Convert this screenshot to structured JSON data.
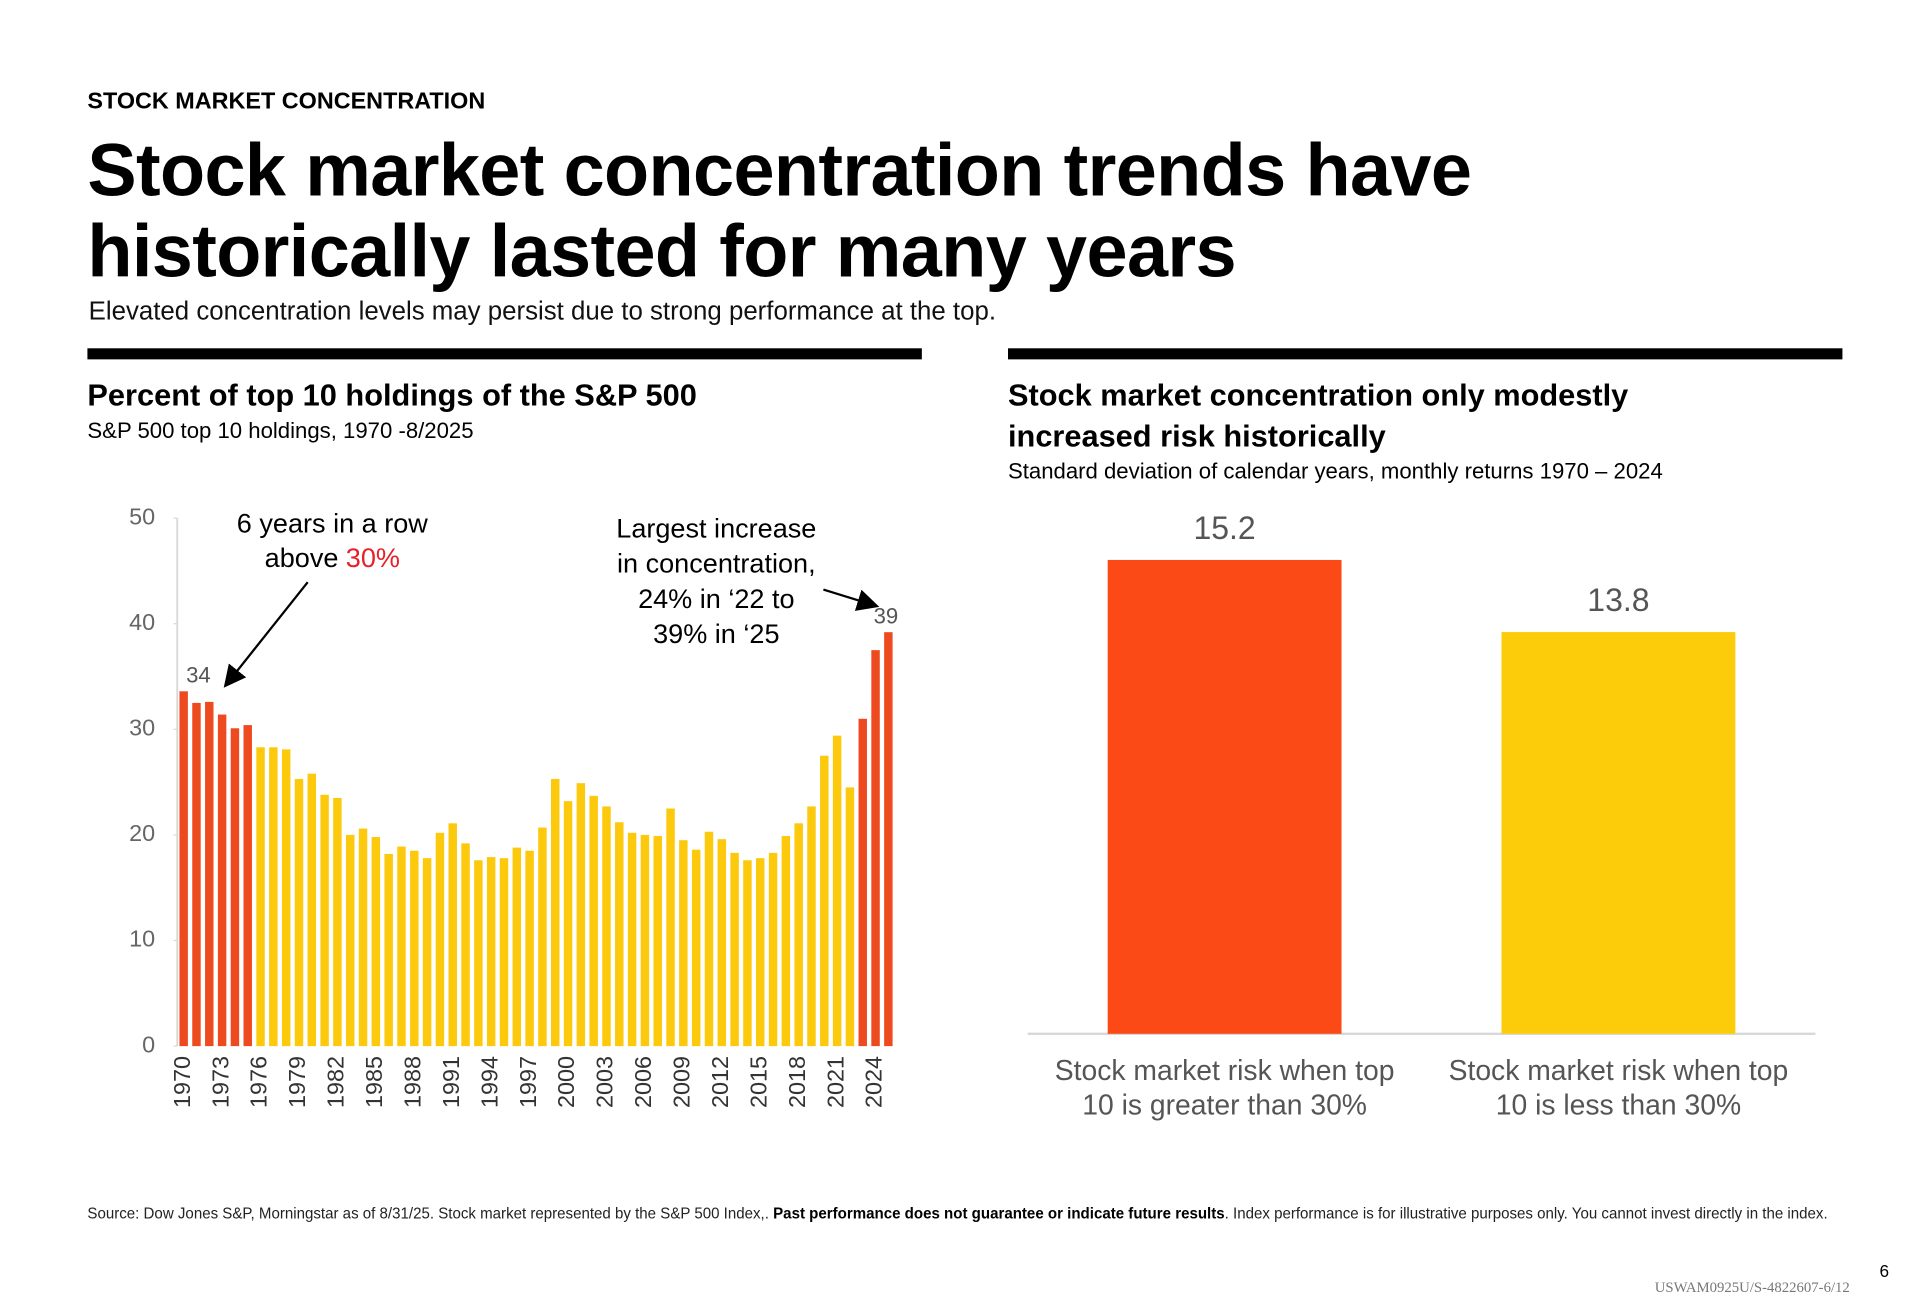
{
  "header": {
    "eyebrow": "STOCK MARKET CONCENTRATION",
    "title": [
      "Stock market concentration trends have",
      "historically lasted for many years"
    ],
    "subtitle": "Elevated concentration levels may persist due to strong performance at the top."
  },
  "chart_data": [
    {
      "type": "bar",
      "title": "Percent of top 10 holdings of the S&P 500",
      "subtitle": "S&P 500 top 10 holdings, 1970 -8/2025",
      "categories": [
        "1970",
        null,
        null,
        "1973",
        null,
        null,
        "1976",
        null,
        null,
        "1979",
        null,
        null,
        "1982",
        null,
        null,
        "1985",
        null,
        null,
        "1988",
        null,
        null,
        "1991",
        null,
        null,
        "1994",
        null,
        null,
        "1997",
        null,
        null,
        "2000",
        null,
        null,
        "2003",
        null,
        null,
        "2006",
        null,
        null,
        "2009",
        null,
        null,
        "2012",
        null,
        null,
        "2015",
        null,
        null,
        "2018",
        null,
        null,
        "2021",
        null,
        null,
        "2024",
        null
      ],
      "values": [
        33.6,
        32.5,
        32.6,
        31.4,
        30.1,
        30.4,
        28.3,
        28.3,
        28.1,
        25.3,
        25.8,
        23.8,
        23.5,
        20.0,
        20.6,
        19.8,
        18.2,
        18.9,
        18.5,
        17.8,
        20.2,
        21.1,
        19.2,
        17.6,
        17.9,
        17.8,
        18.8,
        18.5,
        20.7,
        25.3,
        23.2,
        24.9,
        23.7,
        22.7,
        21.2,
        20.2,
        20.0,
        19.9,
        22.5,
        19.5,
        18.6,
        20.3,
        19.6,
        18.3,
        17.6,
        17.8,
        18.3,
        19.9,
        21.1,
        22.7,
        27.5,
        29.4,
        24.5,
        31.0,
        37.5,
        39.2
      ],
      "value_labels": [
        "34",
        null,
        null,
        null,
        null,
        null,
        null,
        null,
        null,
        null,
        null,
        null,
        null,
        null,
        null,
        null,
        null,
        null,
        null,
        null,
        null,
        null,
        null,
        null,
        null,
        null,
        null,
        null,
        null,
        null,
        null,
        null,
        null,
        null,
        null,
        null,
        null,
        null,
        null,
        null,
        null,
        null,
        null,
        null,
        null,
        null,
        null,
        null,
        null,
        null,
        null,
        null,
        null,
        null,
        null,
        "39"
      ],
      "colors": [
        "#ee4a1f",
        "#ee4a1f",
        "#ee4a1f",
        "#ee4a1f",
        "#ee4a1f",
        "#ee4a1f",
        "#fcc90c",
        "#fcc90c",
        "#fcc90c",
        "#fcc90c",
        "#fcc90c",
        "#fcc90c",
        "#fcc90c",
        "#fcc90c",
        "#fcc90c",
        "#fcc90c",
        "#fcc90c",
        "#fcc90c",
        "#fcc90c",
        "#fcc90c",
        "#fcc90c",
        "#fcc90c",
        "#fcc90c",
        "#fcc90c",
        "#fcc90c",
        "#fcc90c",
        "#fcc90c",
        "#fcc90c",
        "#fcc90c",
        "#fcc90c",
        "#fcc90c",
        "#fcc90c",
        "#fcc90c",
        "#fcc90c",
        "#fcc90c",
        "#fcc90c",
        "#fcc90c",
        "#fcc90c",
        "#fcc90c",
        "#fcc90c",
        "#fcc90c",
        "#fcc90c",
        "#fcc90c",
        "#fcc90c",
        "#fcc90c",
        "#fcc90c",
        "#fcc90c",
        "#fcc90c",
        "#fcc90c",
        "#fcc90c",
        "#fcc90c",
        "#fcc90c",
        "#fcc90c",
        "#ee4a1f",
        "#ee4a1f",
        "#ee4a1f"
      ],
      "ylim": [
        0,
        50
      ],
      "yticks": [
        0,
        10,
        20,
        30,
        40,
        50
      ],
      "annotations": [
        {
          "text": [
            "6 years in a row",
            "above"
          ],
          "highlight": "30%",
          "highlight_color": "#e8202a"
        },
        {
          "text": [
            "Largest increase",
            "in concentration,",
            "24% in ‘22 to",
            "39% in ‘25"
          ]
        }
      ]
    },
    {
      "type": "bar",
      "title": [
        "Stock market concentration only modestly",
        "increased risk historically"
      ],
      "subtitle": "Standard deviation of calendar years, monthly returns 1970 – 2024",
      "categories": [
        "Stock market risk when top 10 is greater than 30%",
        "Stock market risk when top 10 is less than 30%"
      ],
      "values": [
        15.2,
        13.8
      ],
      "colors": [
        "#fc4a17",
        "#fccc0a"
      ],
      "ylim": [
        6,
        16
      ]
    }
  ],
  "footer": {
    "source": [
      "Source: Dow Jones S&P, Morningstar as of 8/31/25. Stock market represented by the S&P 500 Index,. ",
      "Past performance does not guarantee or indicate future results",
      ". Index performance is for illustrative purposes only. You cannot invest directly in the index."
    ],
    "page": "6",
    "code": "USWAM0925U/S-4822607-6/12"
  }
}
